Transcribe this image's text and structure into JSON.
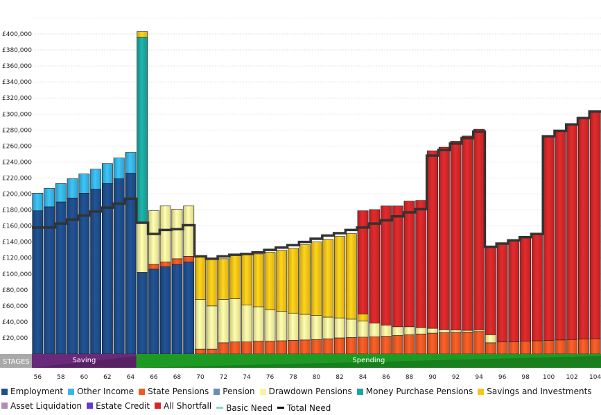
{
  "chart_data": {
    "type": "bar",
    "stacked": true,
    "ylim": [
      0,
      420000
    ],
    "y_ticks": [
      "£20,000",
      "£40,000",
      "£60,000",
      "£80,000",
      "£100,000",
      "£120,000",
      "£140,000",
      "£160,000",
      "£180,000",
      "£200,000",
      "£220,000",
      "£240,000",
      "£260,000",
      "£280,000",
      "£300,000",
      "£320,000",
      "£340,000",
      "£360,000",
      "£380,000",
      "£400,000"
    ],
    "x_ticks": [
      "56",
      "58",
      "60",
      "62",
      "64",
      "66",
      "68",
      "70",
      "72",
      "74",
      "76",
      "78",
      "80",
      "82",
      "84",
      "86",
      "88",
      "90",
      "92",
      "94",
      "96",
      "98",
      "100",
      "102",
      "104"
    ],
    "ages": [
      56,
      57,
      58,
      59,
      60,
      61,
      62,
      63,
      64,
      65,
      66,
      67,
      68,
      69,
      70,
      71,
      72,
      73,
      74,
      75,
      76,
      77,
      78,
      79,
      80,
      81,
      82,
      83,
      84,
      85,
      86,
      87,
      88,
      89,
      90,
      91,
      92,
      93,
      94,
      95,
      96,
      97,
      98,
      99,
      100,
      101,
      102,
      103,
      104
    ],
    "series": [
      {
        "name": "Employment",
        "color": "#1f4e8c",
        "values": [
          179000,
          184000,
          190000,
          195000,
          201000,
          206000,
          213000,
          219000,
          226000,
          102000,
          106000,
          109000,
          112000,
          115000,
          0,
          0,
          0,
          0,
          0,
          0,
          0,
          0,
          0,
          0,
          0,
          0,
          0,
          0,
          0,
          0,
          0,
          0,
          0,
          0,
          0,
          0,
          0,
          0,
          0,
          0,
          0,
          0,
          0,
          0,
          0,
          0,
          0,
          0,
          0
        ]
      },
      {
        "name": "Other Income",
        "color": "#38b7e8",
        "values": [
          22000,
          23000,
          23000,
          24000,
          24000,
          25000,
          25000,
          26000,
          26000,
          0,
          0,
          0,
          0,
          0,
          0,
          0,
          0,
          0,
          0,
          0,
          0,
          0,
          0,
          0,
          0,
          0,
          0,
          0,
          0,
          0,
          0,
          0,
          0,
          0,
          0,
          0,
          0,
          0,
          0,
          0,
          0,
          0,
          0,
          0,
          0,
          0,
          0,
          0,
          0
        ]
      },
      {
        "name": "State Pensions",
        "color": "#ee5a24",
        "values": [
          0,
          0,
          0,
          0,
          0,
          0,
          0,
          0,
          0,
          0,
          6000,
          6000,
          7000,
          7000,
          6000,
          6000,
          14000,
          15000,
          15000,
          16000,
          16000,
          16500,
          17000,
          17500,
          18000,
          19000,
          20000,
          20500,
          21000,
          21500,
          22000,
          23000,
          24000,
          25000,
          26000,
          26500,
          27000,
          27500,
          28000,
          14000,
          15000,
          15000,
          16000,
          16500,
          17000,
          17500,
          18000,
          18500,
          19000
        ]
      },
      {
        "name": "Pension",
        "color": "#6b8db8",
        "values": [
          0,
          0,
          0,
          0,
          0,
          0,
          0,
          0,
          0,
          0,
          0,
          0,
          0,
          0,
          0,
          0,
          0,
          0,
          0,
          0,
          0,
          0,
          0,
          0,
          0,
          0,
          0,
          0,
          0,
          0,
          0,
          0,
          0,
          0,
          0,
          0,
          0,
          0,
          0,
          0,
          0,
          0,
          0,
          0,
          0,
          0,
          0,
          0,
          0
        ]
      },
      {
        "name": "Drawdown Pensions",
        "color": "#faf3a0",
        "values": [
          0,
          0,
          0,
          0,
          0,
          0,
          0,
          0,
          0,
          62000,
          67000,
          70000,
          62000,
          63000,
          62000,
          54000,
          54000,
          54000,
          46000,
          43000,
          39000,
          37000,
          34000,
          32000,
          30000,
          27000,
          25000,
          23000,
          20000,
          17000,
          14000,
          11000,
          10000,
          8000,
          6000,
          4000,
          3000,
          2000,
          2000,
          10000,
          0,
          0,
          0,
          0,
          0,
          0,
          0,
          0,
          0
        ]
      },
      {
        "name": "Money Purchase Pensions",
        "color": "#1aa9a0",
        "values": [
          0,
          0,
          0,
          0,
          0,
          0,
          0,
          0,
          0,
          232000,
          0,
          0,
          0,
          0,
          0,
          0,
          0,
          0,
          0,
          0,
          0,
          0,
          0,
          0,
          0,
          0,
          0,
          0,
          0,
          0,
          0,
          0,
          0,
          0,
          0,
          0,
          0,
          0,
          0,
          0,
          0,
          0,
          0,
          0,
          0,
          0,
          0,
          0,
          0
        ]
      },
      {
        "name": "Savings and Investments",
        "color": "#f5c518",
        "values": [
          0,
          0,
          0,
          0,
          0,
          0,
          0,
          0,
          0,
          7000,
          0,
          0,
          0,
          0,
          54000,
          58000,
          51000,
          54000,
          64000,
          66000,
          72000,
          76000,
          81000,
          87000,
          92000,
          97000,
          102000,
          107000,
          9000,
          0,
          0,
          0,
          0,
          0,
          0,
          0,
          0,
          0,
          0,
          0,
          0,
          0,
          0,
          0,
          0,
          0,
          0,
          0,
          0
        ]
      },
      {
        "name": "Asset Liquidation",
        "color": "#b58ab8",
        "values": [
          0,
          0,
          0,
          0,
          0,
          0,
          0,
          0,
          0,
          0,
          0,
          0,
          0,
          0,
          0,
          0,
          0,
          0,
          0,
          0,
          0,
          0,
          0,
          0,
          0,
          0,
          0,
          0,
          0,
          0,
          0,
          0,
          0,
          0,
          0,
          0,
          0,
          0,
          0,
          0,
          0,
          0,
          0,
          0,
          0,
          0,
          0,
          0,
          0
        ]
      },
      {
        "name": "Estate Credit",
        "color": "#6a3bc4",
        "values": [
          0,
          0,
          0,
          0,
          0,
          0,
          0,
          0,
          0,
          0,
          0,
          0,
          0,
          0,
          0,
          0,
          0,
          0,
          0,
          0,
          0,
          0,
          0,
          0,
          0,
          0,
          0,
          0,
          0,
          0,
          0,
          0,
          0,
          0,
          0,
          0,
          0,
          0,
          0,
          0,
          0,
          0,
          0,
          0,
          0,
          0,
          0,
          0,
          0
        ]
      },
      {
        "name": "All Shortfall",
        "color": "#d4282a",
        "values": [
          0,
          0,
          0,
          0,
          0,
          0,
          0,
          0,
          0,
          0,
          0,
          0,
          0,
          0,
          0,
          0,
          0,
          0,
          0,
          0,
          0,
          0,
          0,
          0,
          0,
          0,
          0,
          0,
          129000,
          142000,
          149000,
          151000,
          157000,
          159000,
          222000,
          228000,
          236000,
          243000,
          251000,
          110000,
          123000,
          127000,
          130000,
          134000,
          255000,
          262000,
          270000,
          277000,
          285000
        ]
      },
      {
        "name": "Basic Need",
        "color": "#7fd8c8",
        "values": [
          0,
          0,
          0,
          0,
          0,
          0,
          0,
          0,
          0,
          0,
          0,
          0,
          0,
          0,
          0,
          0,
          0,
          0,
          0,
          0,
          0,
          0,
          0,
          0,
          0,
          0,
          0,
          0,
          0,
          0,
          0,
          0,
          0,
          0,
          0,
          0,
          0,
          0,
          0,
          0,
          0,
          0,
          0,
          0,
          0,
          0,
          0,
          0,
          0
        ]
      }
    ],
    "total_need": {
      "name": "Total Need",
      "color": "#333333",
      "values": [
        158000,
        158000,
        163000,
        168000,
        173000,
        178000,
        183000,
        188000,
        194000,
        164000,
        150000,
        155000,
        156000,
        161000,
        122000,
        119000,
        122000,
        124000,
        125000,
        127000,
        130000,
        133000,
        136000,
        140000,
        144000,
        148000,
        151000,
        155000,
        158000,
        163000,
        167000,
        172000,
        177000,
        181000,
        248000,
        255000,
        263000,
        270000,
        278000,
        134000,
        138000,
        142000,
        146000,
        150000,
        272000,
        279000,
        287000,
        295000,
        303000
      ]
    },
    "stages": {
      "label": "STAGES",
      "items": [
        {
          "name": "Saving",
          "start_age": 56,
          "end_age": 64,
          "color": "#6a2a7a"
        },
        {
          "name": "Spending",
          "start_age": 65,
          "end_age": 104,
          "color": "#1e9a24"
        }
      ]
    },
    "grid": true,
    "legend_position": "bottom"
  }
}
